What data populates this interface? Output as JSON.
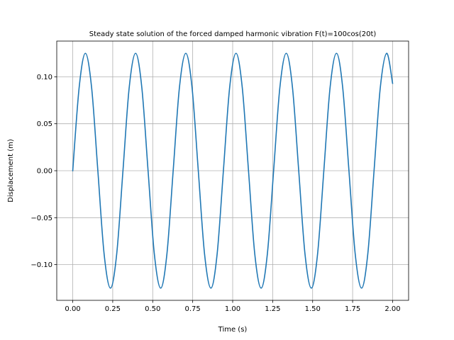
{
  "chart_data": {
    "type": "line",
    "title": "Steady state solution of the forced damped harmonic vibration F(t)=100cos(20t)",
    "xlabel": "Time (s)",
    "ylabel": "Displacement (m)",
    "xlim": [
      -0.1,
      2.1
    ],
    "ylim": [
      -0.138,
      0.138
    ],
    "xticks": [
      0.0,
      0.25,
      0.5,
      0.75,
      1.0,
      1.25,
      1.5,
      1.75,
      2.0
    ],
    "xtick_labels": [
      "0.00",
      "0.25",
      "0.50",
      "0.75",
      "1.00",
      "1.25",
      "1.50",
      "1.75",
      "2.00"
    ],
    "yticks": [
      -0.1,
      -0.05,
      0.0,
      0.05,
      0.1
    ],
    "ytick_labels": [
      "−0.10",
      "−0.05",
      "0.00",
      "0.05",
      "0.10"
    ],
    "grid": true,
    "series": [
      {
        "color": "#1f77b4",
        "x": [
          0.0,
          0.04,
          0.079,
          0.118,
          0.157,
          0.196,
          0.236,
          0.275,
          0.314,
          0.353,
          0.393,
          0.432,
          0.471,
          0.51,
          0.55,
          0.589,
          0.628,
          0.667,
          0.707,
          0.746,
          0.785,
          0.824,
          0.864,
          0.903,
          0.942,
          0.981,
          1.021,
          1.06,
          1.099,
          1.138,
          1.178,
          1.217,
          1.256,
          1.295,
          1.335,
          1.374,
          1.413,
          1.452,
          1.492,
          1.531,
          1.57,
          1.609,
          1.649,
          1.688,
          1.727,
          1.766,
          1.806,
          1.845,
          1.884,
          1.923,
          1.963,
          2.0
        ],
        "y": [
          0.0,
          0.0884,
          0.125,
          0.0884,
          0.0,
          -0.0884,
          -0.125,
          -0.0884,
          0.0,
          0.0884,
          0.125,
          0.0884,
          0.0,
          -0.0884,
          -0.125,
          -0.0884,
          0.0,
          0.0884,
          0.125,
          0.0884,
          0.0,
          -0.0884,
          -0.125,
          -0.0884,
          0.0,
          0.0884,
          0.125,
          0.0884,
          0.0,
          -0.0884,
          -0.125,
          -0.0884,
          0.0,
          0.0884,
          0.125,
          0.0884,
          0.0,
          -0.0884,
          -0.125,
          -0.0884,
          0.0,
          0.0884,
          0.125,
          0.0884,
          0.0,
          -0.0884,
          -0.125,
          -0.0884,
          0.0,
          0.0884,
          0.125,
          0.093
        ]
      }
    ]
  }
}
